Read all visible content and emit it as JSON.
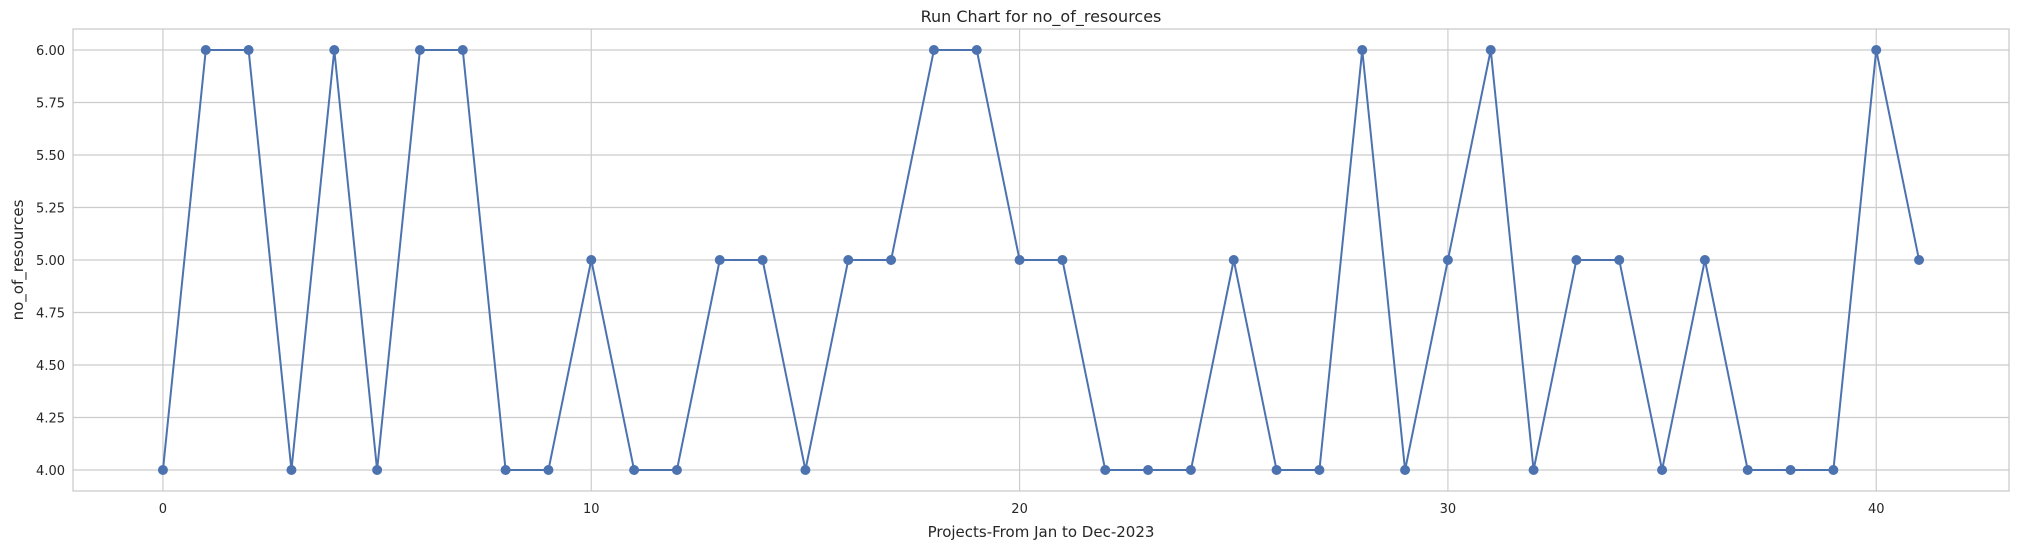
{
  "chart_data": {
    "type": "line",
    "title": "Run Chart for no_of_resources",
    "xlabel": "Projects-From Jan to Dec-2023",
    "ylabel": "no_of_resources",
    "xlim": [
      -2.1,
      43.1
    ],
    "ylim": [
      3.9,
      6.1
    ],
    "x_ticks": [
      0,
      10,
      20,
      30,
      40
    ],
    "x_tick_labels": [
      "0",
      "10",
      "20",
      "30",
      "40"
    ],
    "y_ticks": [
      4.0,
      4.25,
      4.5,
      4.75,
      5.0,
      5.25,
      5.5,
      5.75,
      6.0
    ],
    "y_tick_labels": [
      "4.00",
      "4.25",
      "4.50",
      "4.75",
      "5.00",
      "5.25",
      "5.50",
      "5.75",
      "6.00"
    ],
    "grid": true,
    "series": [
      {
        "color": "#4c72b0",
        "marker": "circle",
        "x": [
          0,
          1,
          2,
          3,
          4,
          5,
          6,
          7,
          8,
          9,
          10,
          11,
          12,
          13,
          14,
          15,
          16,
          17,
          18,
          19,
          20,
          21,
          22,
          23,
          24,
          25,
          26,
          27,
          28,
          29,
          30,
          31,
          32,
          33,
          34,
          35,
          36,
          37,
          38,
          39,
          40,
          41
        ],
        "values": [
          4,
          6,
          6,
          4,
          6,
          4,
          6,
          6,
          4,
          4,
          5,
          4,
          4,
          5,
          5,
          4,
          5,
          5,
          6,
          6,
          5,
          5,
          4,
          4,
          4,
          5,
          4,
          4,
          6,
          4,
          5,
          6,
          4,
          5,
          5,
          4,
          5,
          4,
          4,
          4,
          6,
          5
        ]
      }
    ]
  }
}
